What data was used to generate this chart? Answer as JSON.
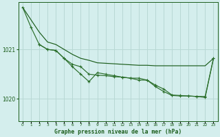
{
  "bg_color": "#d4eeed",
  "grid_color": "#b8d8d4",
  "line_color1": "#1a5c1a",
  "line_color2": "#2a6e2a",
  "line_color3": "#2a6e2a",
  "xlabel": "Graphe pression niveau de la mer (hPa)",
  "xlim": [
    -0.5,
    23.5
  ],
  "ylim": [
    1019.55,
    1021.95
  ],
  "yticks": [
    1020,
    1021
  ],
  "xticks": [
    0,
    1,
    2,
    3,
    4,
    5,
    6,
    7,
    8,
    9,
    10,
    11,
    12,
    13,
    14,
    15,
    16,
    17,
    18,
    19,
    20,
    21,
    22,
    23
  ],
  "hours": [
    0,
    1,
    2,
    3,
    4,
    5,
    6,
    7,
    8,
    9,
    10,
    11,
    12,
    13,
    14,
    15,
    16,
    17,
    18,
    19,
    20,
    21,
    22,
    23
  ],
  "series1": [
    1021.85,
    1021.6,
    1021.35,
    1021.15,
    1021.1,
    1021.0,
    1020.9,
    1020.82,
    1020.78,
    1020.73,
    1020.72,
    1020.71,
    1020.7,
    1020.69,
    1020.68,
    1020.68,
    1020.67,
    1020.67,
    1020.67,
    1020.67,
    1020.67,
    1020.67,
    1020.67,
    1020.82
  ],
  "series2": [
    1021.85,
    1021.45,
    1021.1,
    1021.0,
    1020.98,
    1020.82,
    1020.7,
    1020.65,
    1020.5,
    1020.48,
    1020.47,
    1020.45,
    1020.44,
    1020.42,
    1020.42,
    1020.38,
    1020.28,
    1020.2,
    1020.08,
    1020.07,
    1020.06,
    1020.05,
    1020.05,
    1020.82
  ],
  "series3": [
    null,
    null,
    1021.1,
    1021.0,
    1020.98,
    1020.82,
    1020.65,
    1020.5,
    1020.35,
    1020.53,
    1020.5,
    1020.47,
    1020.44,
    1020.42,
    1020.38,
    1020.38,
    1020.25,
    1020.15,
    1020.07,
    1020.06,
    1020.06,
    1020.05,
    1020.03,
    1020.82
  ]
}
